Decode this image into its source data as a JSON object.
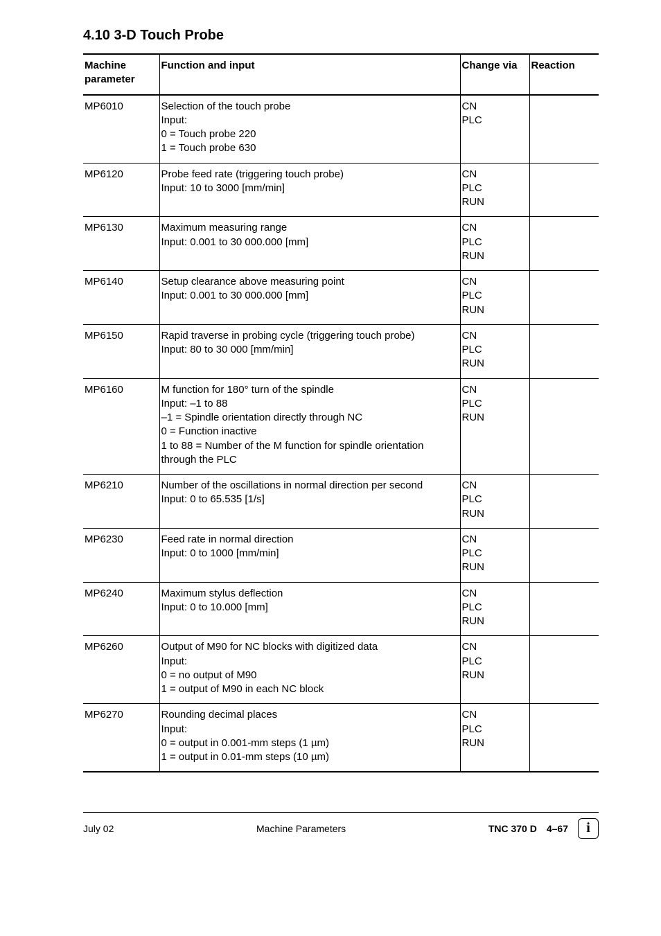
{
  "heading": "4.10 3-D Touch Probe",
  "columns": [
    "Machine parameter",
    "Function and input",
    "Change via",
    "Reaction"
  ],
  "rows": [
    {
      "mp": "MP6010",
      "func": "Selection of the touch probe\nInput:\n0 = Touch probe 220\n1 = Touch probe 630",
      "via": "CN\nPLC",
      "react": ""
    },
    {
      "mp": "MP6120",
      "func": "Probe feed rate (triggering touch probe)\nInput:   10 to 3000 [mm/min]",
      "via": "CN\nPLC\nRUN",
      "react": ""
    },
    {
      "mp": "MP6130",
      "func": "Maximum measuring range\nInput:   0.001 to 30 000.000 [mm]",
      "via": "CN\nPLC\nRUN",
      "react": ""
    },
    {
      "mp": "MP6140",
      "func": "Setup clearance above measuring point\nInput:   0.001 to 30 000.000 [mm]",
      "via": "CN\nPLC\nRUN",
      "react": ""
    },
    {
      "mp": "MP6150",
      "func": "Rapid traverse in probing cycle (triggering touch probe)\nInput:   80 to 30 000 [mm/min]",
      "via": "CN\nPLC\nRUN",
      "react": ""
    },
    {
      "mp": "MP6160",
      "func": "M function for 180° turn of the spindle\nInput:   –1 to 88\n–1 = Spindle orientation directly through NC\n  0 = Function inactive\n1 to 88 = Number of the M function for spindle orientation through the PLC",
      "via": "CN\nPLC\nRUN",
      "react": ""
    },
    {
      "mp": "MP6210",
      "func": "Number of the oscillations in normal direction per second\nInput:   0 to 65.535 [1/s]",
      "via": "CN\nPLC\nRUN",
      "react": ""
    },
    {
      "mp": "MP6230",
      "func": "Feed rate in normal direction\nInput:   0 to 1000 [mm/min]",
      "via": "CN\nPLC\nRUN",
      "react": ""
    },
    {
      "mp": "MP6240",
      "func": "Maximum stylus deflection\nInput:   0 to 10.000 [mm]",
      "via": "CN\nPLC\nRUN",
      "react": ""
    },
    {
      "mp": "MP6260",
      "func": "Output of M90 for NC blocks with digitized data\nInput:\n0 = no output of M90\n1 = output of M90 in each NC block",
      "via": "CN\nPLC\nRUN",
      "react": ""
    },
    {
      "mp": "MP6270",
      "func": "Rounding decimal places\nInput:\n0 = output in 0.001-mm steps (1 µm)\n1 = output in 0.01-mm steps (10 µm)",
      "via": "CN\nPLC\nRUN",
      "react": ""
    }
  ],
  "footer": {
    "left": "July  02",
    "center": "Machine Parameters",
    "tnc": "TNC 370 D",
    "page": "4–67",
    "info_glyph": "i"
  }
}
